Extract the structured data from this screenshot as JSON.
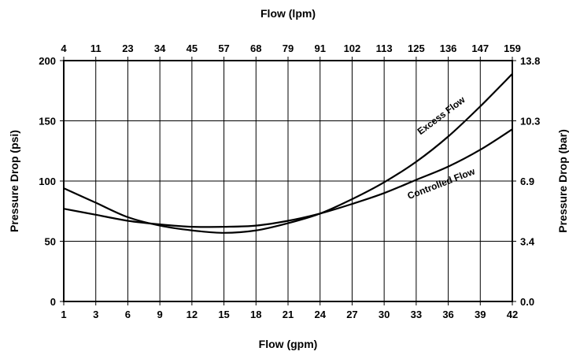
{
  "chart_data": {
    "type": "line",
    "grid": true,
    "x_bottom": {
      "label": "Flow (gpm)",
      "ticks": [
        "1",
        "3",
        "6",
        "9",
        "12",
        "15",
        "18",
        "21",
        "24",
        "27",
        "30",
        "33",
        "36",
        "39",
        "42"
      ]
    },
    "x_top": {
      "label": "Flow (lpm)",
      "ticks": [
        "4",
        "11",
        "23",
        "34",
        "45",
        "57",
        "68",
        "79",
        "91",
        "102",
        "113",
        "125",
        "136",
        "147",
        "159"
      ]
    },
    "y_left": {
      "label": "Pressure Drop (psi)",
      "ticks": [
        "0",
        "50",
        "100",
        "150",
        "200"
      ],
      "ylim": [
        0,
        200
      ]
    },
    "y_right": {
      "label": "Pressure Drop (bar)",
      "ticks": [
        "0.0",
        "3.4",
        "6.9",
        "10.3",
        "13.8"
      ]
    },
    "series": [
      {
        "name": "Excess Flow",
        "x": [
          1,
          3,
          6,
          9,
          12,
          15,
          18,
          21,
          24,
          27,
          30,
          33,
          36,
          39,
          42
        ],
        "y": [
          94,
          82,
          70,
          63,
          59,
          57,
          59,
          65,
          73,
          85,
          99,
          116,
          137,
          162,
          189
        ]
      },
      {
        "name": "Controlled Flow",
        "x": [
          1,
          3,
          6,
          9,
          12,
          15,
          18,
          21,
          24,
          27,
          30,
          33,
          36,
          39,
          42
        ],
        "y": [
          77,
          72,
          67,
          64,
          62,
          62,
          63,
          67,
          73,
          81,
          90,
          101,
          112,
          126,
          143
        ]
      }
    ]
  }
}
